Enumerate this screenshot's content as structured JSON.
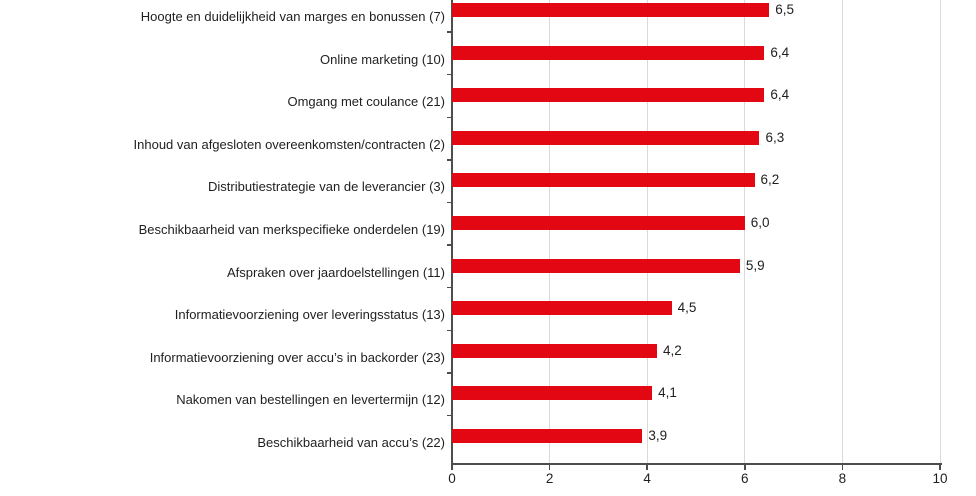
{
  "chart_data": {
    "type": "bar",
    "orientation": "horizontal",
    "title": "",
    "xlabel": "",
    "ylabel": "",
    "xlim": [
      0,
      10
    ],
    "x_ticks": [
      0,
      2,
      4,
      6,
      8,
      10
    ],
    "x_tick_labels": [
      "0",
      "2",
      "4",
      "6",
      "8",
      "10"
    ],
    "grid": "vertical-gridlines-on",
    "legend": "none",
    "categories": [
      "Hoogte en duidelijkheid van marges en bonussen (7)",
      "Online marketing (10)",
      "Omgang met coulance (21)",
      "Inhoud van afgesloten overeenkomsten/contracten (2)",
      "Distributiestrategie van de leverancier (3)",
      "Beschikbaarheid van merkspecifieke onderdelen (19)",
      "Afspraken over jaardoelstellingen (11)",
      "Informatievoorziening over leveringsstatus (13)",
      "Informatievoorziening over accu’s in backorder (23)",
      "Nakomen van bestellingen en levertermijn (12)",
      "Beschikbaarheid van accu’s (22)"
    ],
    "values": [
      6.5,
      6.4,
      6.4,
      6.3,
      6.2,
      6.0,
      5.9,
      4.5,
      4.2,
      4.1,
      3.9
    ],
    "value_labels": [
      "6,5",
      "6,4",
      "6,4",
      "6,3",
      "6,2",
      "6,0",
      "5,9",
      "4,5",
      "4,2",
      "4,1",
      "3,9"
    ]
  },
  "colors": {
    "bar": "#e30613",
    "gridline": "#d9d9d9",
    "axis": "#4d4d4d",
    "text": "#1f1f1f"
  }
}
